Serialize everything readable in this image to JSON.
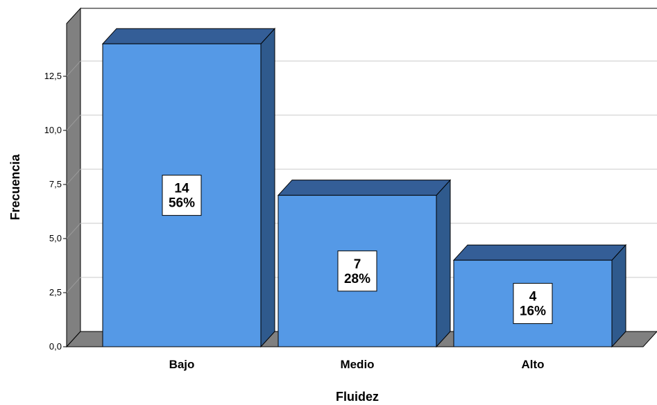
{
  "chart_data": {
    "type": "bar",
    "title": "",
    "xlabel": "Fluidez",
    "ylabel": "Frecuencia",
    "categories": [
      "Bajo",
      "Medio",
      "Alto"
    ],
    "values": [
      14,
      7,
      4
    ],
    "percent_labels": [
      "56%",
      "28%",
      "16%"
    ],
    "ylim": [
      0,
      14.5
    ],
    "yticks": [
      {
        "value": 0,
        "label": "0,0"
      },
      {
        "value": 2.5,
        "label": "2,5"
      },
      {
        "value": 5,
        "label": "5,0"
      },
      {
        "value": 7.5,
        "label": "7,5"
      },
      {
        "value": 10,
        "label": "10,0"
      },
      {
        "value": 12.5,
        "label": "12,5"
      }
    ],
    "grid": true,
    "style": "3d",
    "colors": {
      "bar_front": "#5599E6",
      "bar_top": "#345E97",
      "bar_side": "#2F5A8D",
      "wall": "#808080",
      "gridline": "#C8C8C8"
    }
  }
}
